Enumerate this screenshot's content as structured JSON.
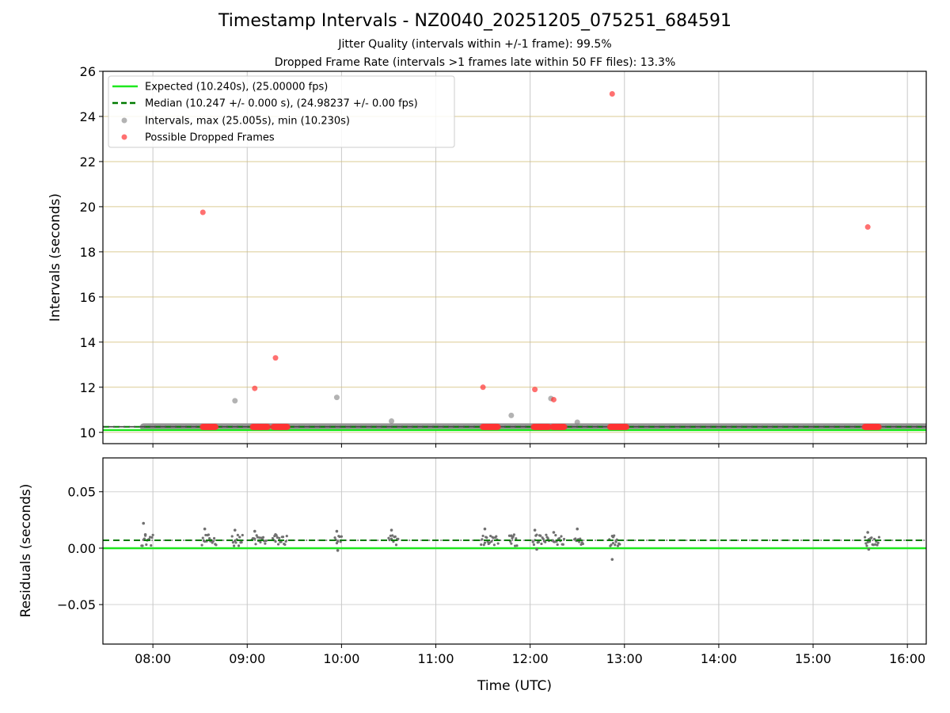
{
  "chart_data": [
    {
      "type": "scatter",
      "panel": "intervals",
      "title": "Timestamp Intervals - NZ0040_20251205_075251_684591",
      "subtitle_1": "Jitter Quality (intervals within +/-1 frame): 99.5%",
      "subtitle_2": "Dropped Frame Rate (intervals >1 frames late within 50 FF files): 13.3%",
      "xlabel": "",
      "ylabel": "Intervals (seconds)",
      "xlim": [
        7.47,
        16.2
      ],
      "ylim": [
        9.5,
        26
      ],
      "yticks": [
        10,
        12,
        14,
        16,
        18,
        20,
        22,
        24,
        26
      ],
      "ytick_labels": [
        "10",
        "12",
        "14",
        "16",
        "18",
        "20",
        "22",
        "24",
        "26"
      ],
      "xticks": [
        8,
        9,
        10,
        11,
        12,
        13,
        14,
        15,
        16
      ],
      "grid": true,
      "legend_position": "top-left",
      "expected": 10.24,
      "median": 10.247,
      "baseline_band": [
        7.9,
        16.2
      ],
      "series": [
        {
          "name": "Expected (10.240s), (25.00000 fps)",
          "kind": "hline",
          "color": "#1ee81e",
          "style": "solid",
          "value": 10.24
        },
        {
          "name": "Median (10.247 +/- 0.000 s), (24.98237 +/- 0.00 fps)",
          "kind": "hline",
          "color": "#007a00",
          "style": "dashed",
          "value": 10.247
        },
        {
          "name": "Intervals, max (25.005s), min (10.230s)",
          "kind": "points",
          "color": "#808080",
          "points": [
            [
              8.87,
              11.4
            ],
            [
              9.95,
              11.55
            ],
            [
              10.53,
              10.5
            ],
            [
              11.8,
              10.75
            ],
            [
              12.22,
              11.5
            ],
            [
              12.5,
              10.45
            ]
          ]
        },
        {
          "name": "Possible Dropped Frames",
          "kind": "points",
          "color": "#ff3333",
          "points": [
            [
              8.53,
              19.75
            ],
            [
              9.08,
              11.95
            ],
            [
              9.3,
              13.3
            ],
            [
              11.5,
              12.0
            ],
            [
              12.05,
              11.9
            ],
            [
              12.25,
              11.45
            ],
            [
              12.87,
              25.0
            ],
            [
              15.58,
              19.1
            ]
          ],
          "clusters": [
            [
              8.53,
              8.67
            ],
            [
              9.06,
              9.22
            ],
            [
              9.28,
              9.43
            ],
            [
              11.5,
              11.66
            ],
            [
              12.04,
              12.2
            ],
            [
              12.24,
              12.36
            ],
            [
              12.85,
              13.02
            ],
            [
              15.55,
              15.7
            ]
          ],
          "cluster_value": 10.24
        }
      ]
    },
    {
      "type": "scatter",
      "panel": "residuals",
      "xlabel": "Time (UTC)",
      "ylabel": "Residuals (seconds)",
      "xlim": [
        7.47,
        16.2
      ],
      "ylim": [
        -0.085,
        0.08
      ],
      "yticks": [
        -0.05,
        0.0,
        0.05
      ],
      "ytick_labels": [
        "−0.05",
        "0.00",
        "0.05"
      ],
      "xticks": [
        8,
        9,
        10,
        11,
        12,
        13,
        14,
        15,
        16
      ],
      "xtick_labels": [
        "08:00",
        "09:00",
        "10:00",
        "11:00",
        "12:00",
        "13:00",
        "14:00",
        "15:00",
        "16:00"
      ],
      "grid": true,
      "series": [
        {
          "name": "zero",
          "kind": "hline",
          "color": "#1ee81e",
          "style": "solid",
          "value": 0.0
        },
        {
          "name": "median offset",
          "kind": "hline",
          "color": "#007a00",
          "style": "dashed",
          "value": 0.007
        },
        {
          "name": "residuals",
          "kind": "points",
          "color": "#707070",
          "points": [
            [
              7.9,
              0.022
            ],
            [
              7.92,
              0.012
            ],
            [
              8.55,
              0.017
            ],
            [
              8.87,
              0.016
            ],
            [
              9.08,
              0.015
            ],
            [
              9.3,
              0.012
            ],
            [
              9.95,
              0.015
            ],
            [
              9.96,
              -0.002
            ],
            [
              10.53,
              0.016
            ],
            [
              11.52,
              0.017
            ],
            [
              11.8,
              0.011
            ],
            [
              12.05,
              0.016
            ],
            [
              12.07,
              -0.001
            ],
            [
              12.25,
              0.014
            ],
            [
              12.5,
              0.017
            ],
            [
              12.87,
              -0.01
            ],
            [
              12.88,
              0.01
            ],
            [
              15.58,
              0.014
            ],
            [
              15.59,
              -0.001
            ]
          ],
          "clusters": [
            [
              7.88,
              8.0
            ],
            [
              8.52,
              8.67
            ],
            [
              8.84,
              8.95
            ],
            [
              9.05,
              9.2
            ],
            [
              9.27,
              9.42
            ],
            [
              9.93,
              10.0
            ],
            [
              10.5,
              10.6
            ],
            [
              11.48,
              11.66
            ],
            [
              11.78,
              11.86
            ],
            [
              12.03,
              12.2
            ],
            [
              12.23,
              12.36
            ],
            [
              12.47,
              12.56
            ],
            [
              12.84,
              12.95
            ],
            [
              15.55,
              15.7
            ]
          ]
        }
      ]
    }
  ]
}
